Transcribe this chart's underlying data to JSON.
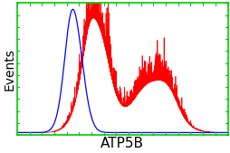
{
  "xlabel": "ATP5B",
  "ylabel": "Events",
  "background_color": "#ffffff",
  "border_color": "#00cc00",
  "xlabel_fontsize": 11,
  "ylabel_fontsize": 10,
  "xlim": [
    0.0,
    1.0
  ],
  "ylim": [
    0.0,
    1.0
  ]
}
